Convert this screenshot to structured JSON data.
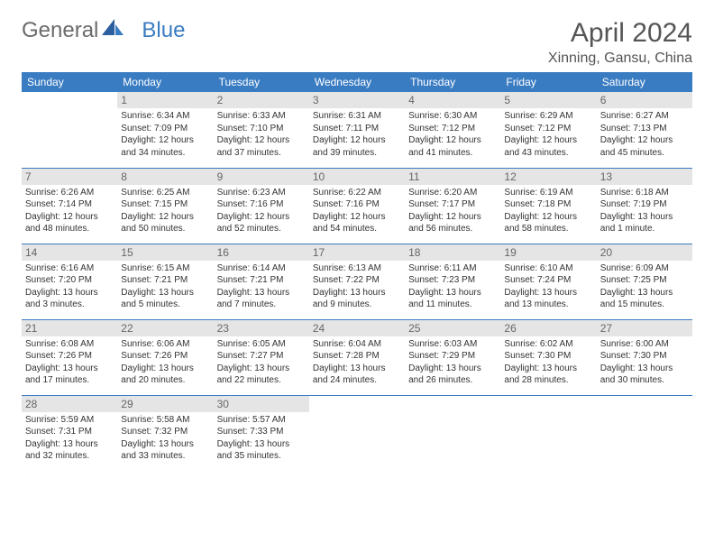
{
  "logo": {
    "text1": "General",
    "text2": "Blue"
  },
  "title": "April 2024",
  "location": "Xinning, Gansu, China",
  "colors": {
    "header_bg": "#3a7cc2",
    "header_text": "#ffffff",
    "daynum_bg": "#e5e5e5",
    "daynum_text": "#666666",
    "row_divider": "#3a7cc2",
    "body_text": "#333333",
    "title_text": "#555555",
    "page_bg": "#ffffff"
  },
  "typography": {
    "title_fontsize": 30,
    "location_fontsize": 16,
    "logo_fontsize": 24,
    "dayheader_fontsize": 12,
    "daynum_fontsize": 12,
    "cell_fontsize": 10
  },
  "day_headers": [
    "Sunday",
    "Monday",
    "Tuesday",
    "Wednesday",
    "Thursday",
    "Friday",
    "Saturday"
  ],
  "weeks": [
    [
      null,
      {
        "n": "1",
        "sr": "Sunrise: 6:34 AM",
        "ss": "Sunset: 7:09 PM",
        "d1": "Daylight: 12 hours",
        "d2": "and 34 minutes."
      },
      {
        "n": "2",
        "sr": "Sunrise: 6:33 AM",
        "ss": "Sunset: 7:10 PM",
        "d1": "Daylight: 12 hours",
        "d2": "and 37 minutes."
      },
      {
        "n": "3",
        "sr": "Sunrise: 6:31 AM",
        "ss": "Sunset: 7:11 PM",
        "d1": "Daylight: 12 hours",
        "d2": "and 39 minutes."
      },
      {
        "n": "4",
        "sr": "Sunrise: 6:30 AM",
        "ss": "Sunset: 7:12 PM",
        "d1": "Daylight: 12 hours",
        "d2": "and 41 minutes."
      },
      {
        "n": "5",
        "sr": "Sunrise: 6:29 AM",
        "ss": "Sunset: 7:12 PM",
        "d1": "Daylight: 12 hours",
        "d2": "and 43 minutes."
      },
      {
        "n": "6",
        "sr": "Sunrise: 6:27 AM",
        "ss": "Sunset: 7:13 PM",
        "d1": "Daylight: 12 hours",
        "d2": "and 45 minutes."
      }
    ],
    [
      {
        "n": "7",
        "sr": "Sunrise: 6:26 AM",
        "ss": "Sunset: 7:14 PM",
        "d1": "Daylight: 12 hours",
        "d2": "and 48 minutes."
      },
      {
        "n": "8",
        "sr": "Sunrise: 6:25 AM",
        "ss": "Sunset: 7:15 PM",
        "d1": "Daylight: 12 hours",
        "d2": "and 50 minutes."
      },
      {
        "n": "9",
        "sr": "Sunrise: 6:23 AM",
        "ss": "Sunset: 7:16 PM",
        "d1": "Daylight: 12 hours",
        "d2": "and 52 minutes."
      },
      {
        "n": "10",
        "sr": "Sunrise: 6:22 AM",
        "ss": "Sunset: 7:16 PM",
        "d1": "Daylight: 12 hours",
        "d2": "and 54 minutes."
      },
      {
        "n": "11",
        "sr": "Sunrise: 6:20 AM",
        "ss": "Sunset: 7:17 PM",
        "d1": "Daylight: 12 hours",
        "d2": "and 56 minutes."
      },
      {
        "n": "12",
        "sr": "Sunrise: 6:19 AM",
        "ss": "Sunset: 7:18 PM",
        "d1": "Daylight: 12 hours",
        "d2": "and 58 minutes."
      },
      {
        "n": "13",
        "sr": "Sunrise: 6:18 AM",
        "ss": "Sunset: 7:19 PM",
        "d1": "Daylight: 13 hours",
        "d2": "and 1 minute."
      }
    ],
    [
      {
        "n": "14",
        "sr": "Sunrise: 6:16 AM",
        "ss": "Sunset: 7:20 PM",
        "d1": "Daylight: 13 hours",
        "d2": "and 3 minutes."
      },
      {
        "n": "15",
        "sr": "Sunrise: 6:15 AM",
        "ss": "Sunset: 7:21 PM",
        "d1": "Daylight: 13 hours",
        "d2": "and 5 minutes."
      },
      {
        "n": "16",
        "sr": "Sunrise: 6:14 AM",
        "ss": "Sunset: 7:21 PM",
        "d1": "Daylight: 13 hours",
        "d2": "and 7 minutes."
      },
      {
        "n": "17",
        "sr": "Sunrise: 6:13 AM",
        "ss": "Sunset: 7:22 PM",
        "d1": "Daylight: 13 hours",
        "d2": "and 9 minutes."
      },
      {
        "n": "18",
        "sr": "Sunrise: 6:11 AM",
        "ss": "Sunset: 7:23 PM",
        "d1": "Daylight: 13 hours",
        "d2": "and 11 minutes."
      },
      {
        "n": "19",
        "sr": "Sunrise: 6:10 AM",
        "ss": "Sunset: 7:24 PM",
        "d1": "Daylight: 13 hours",
        "d2": "and 13 minutes."
      },
      {
        "n": "20",
        "sr": "Sunrise: 6:09 AM",
        "ss": "Sunset: 7:25 PM",
        "d1": "Daylight: 13 hours",
        "d2": "and 15 minutes."
      }
    ],
    [
      {
        "n": "21",
        "sr": "Sunrise: 6:08 AM",
        "ss": "Sunset: 7:26 PM",
        "d1": "Daylight: 13 hours",
        "d2": "and 17 minutes."
      },
      {
        "n": "22",
        "sr": "Sunrise: 6:06 AM",
        "ss": "Sunset: 7:26 PM",
        "d1": "Daylight: 13 hours",
        "d2": "and 20 minutes."
      },
      {
        "n": "23",
        "sr": "Sunrise: 6:05 AM",
        "ss": "Sunset: 7:27 PM",
        "d1": "Daylight: 13 hours",
        "d2": "and 22 minutes."
      },
      {
        "n": "24",
        "sr": "Sunrise: 6:04 AM",
        "ss": "Sunset: 7:28 PM",
        "d1": "Daylight: 13 hours",
        "d2": "and 24 minutes."
      },
      {
        "n": "25",
        "sr": "Sunrise: 6:03 AM",
        "ss": "Sunset: 7:29 PM",
        "d1": "Daylight: 13 hours",
        "d2": "and 26 minutes."
      },
      {
        "n": "26",
        "sr": "Sunrise: 6:02 AM",
        "ss": "Sunset: 7:30 PM",
        "d1": "Daylight: 13 hours",
        "d2": "and 28 minutes."
      },
      {
        "n": "27",
        "sr": "Sunrise: 6:00 AM",
        "ss": "Sunset: 7:30 PM",
        "d1": "Daylight: 13 hours",
        "d2": "and 30 minutes."
      }
    ],
    [
      {
        "n": "28",
        "sr": "Sunrise: 5:59 AM",
        "ss": "Sunset: 7:31 PM",
        "d1": "Daylight: 13 hours",
        "d2": "and 32 minutes."
      },
      {
        "n": "29",
        "sr": "Sunrise: 5:58 AM",
        "ss": "Sunset: 7:32 PM",
        "d1": "Daylight: 13 hours",
        "d2": "and 33 minutes."
      },
      {
        "n": "30",
        "sr": "Sunrise: 5:57 AM",
        "ss": "Sunset: 7:33 PM",
        "d1": "Daylight: 13 hours",
        "d2": "and 35 minutes."
      },
      null,
      null,
      null,
      null
    ]
  ]
}
